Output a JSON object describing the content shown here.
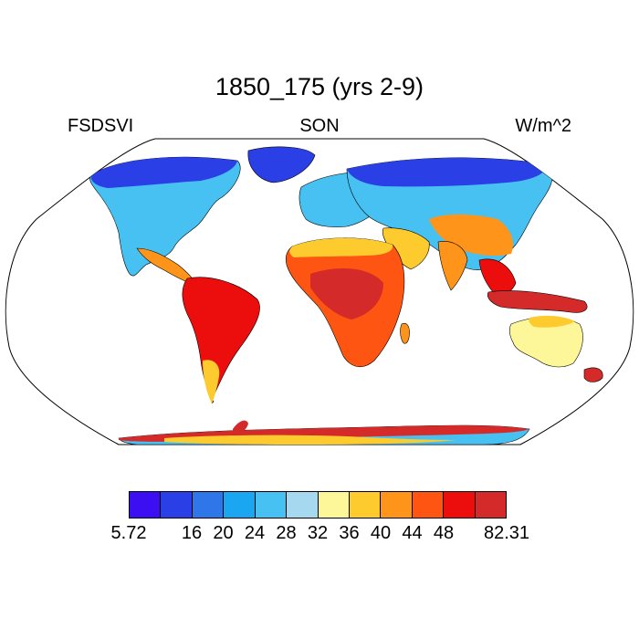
{
  "title": "1850_175 (yrs 2-9)",
  "left_label": "FSDSVI",
  "center_label": "SON",
  "right_label": "W/m^2",
  "projection": "Robinson",
  "colorbar": {
    "colors": [
      "#3b0ff2",
      "#2a3fe6",
      "#2f77e8",
      "#1ba6f2",
      "#46c1f2",
      "#a6d8ef",
      "#fef799",
      "#fecb2e",
      "#fe951a",
      "#fe5612",
      "#ec0d0d",
      "#d42a2a"
    ],
    "tick_labels": [
      "5.72",
      "16",
      "20",
      "24",
      "28",
      "32",
      "36",
      "40",
      "44",
      "48",
      "82.31"
    ]
  }
}
